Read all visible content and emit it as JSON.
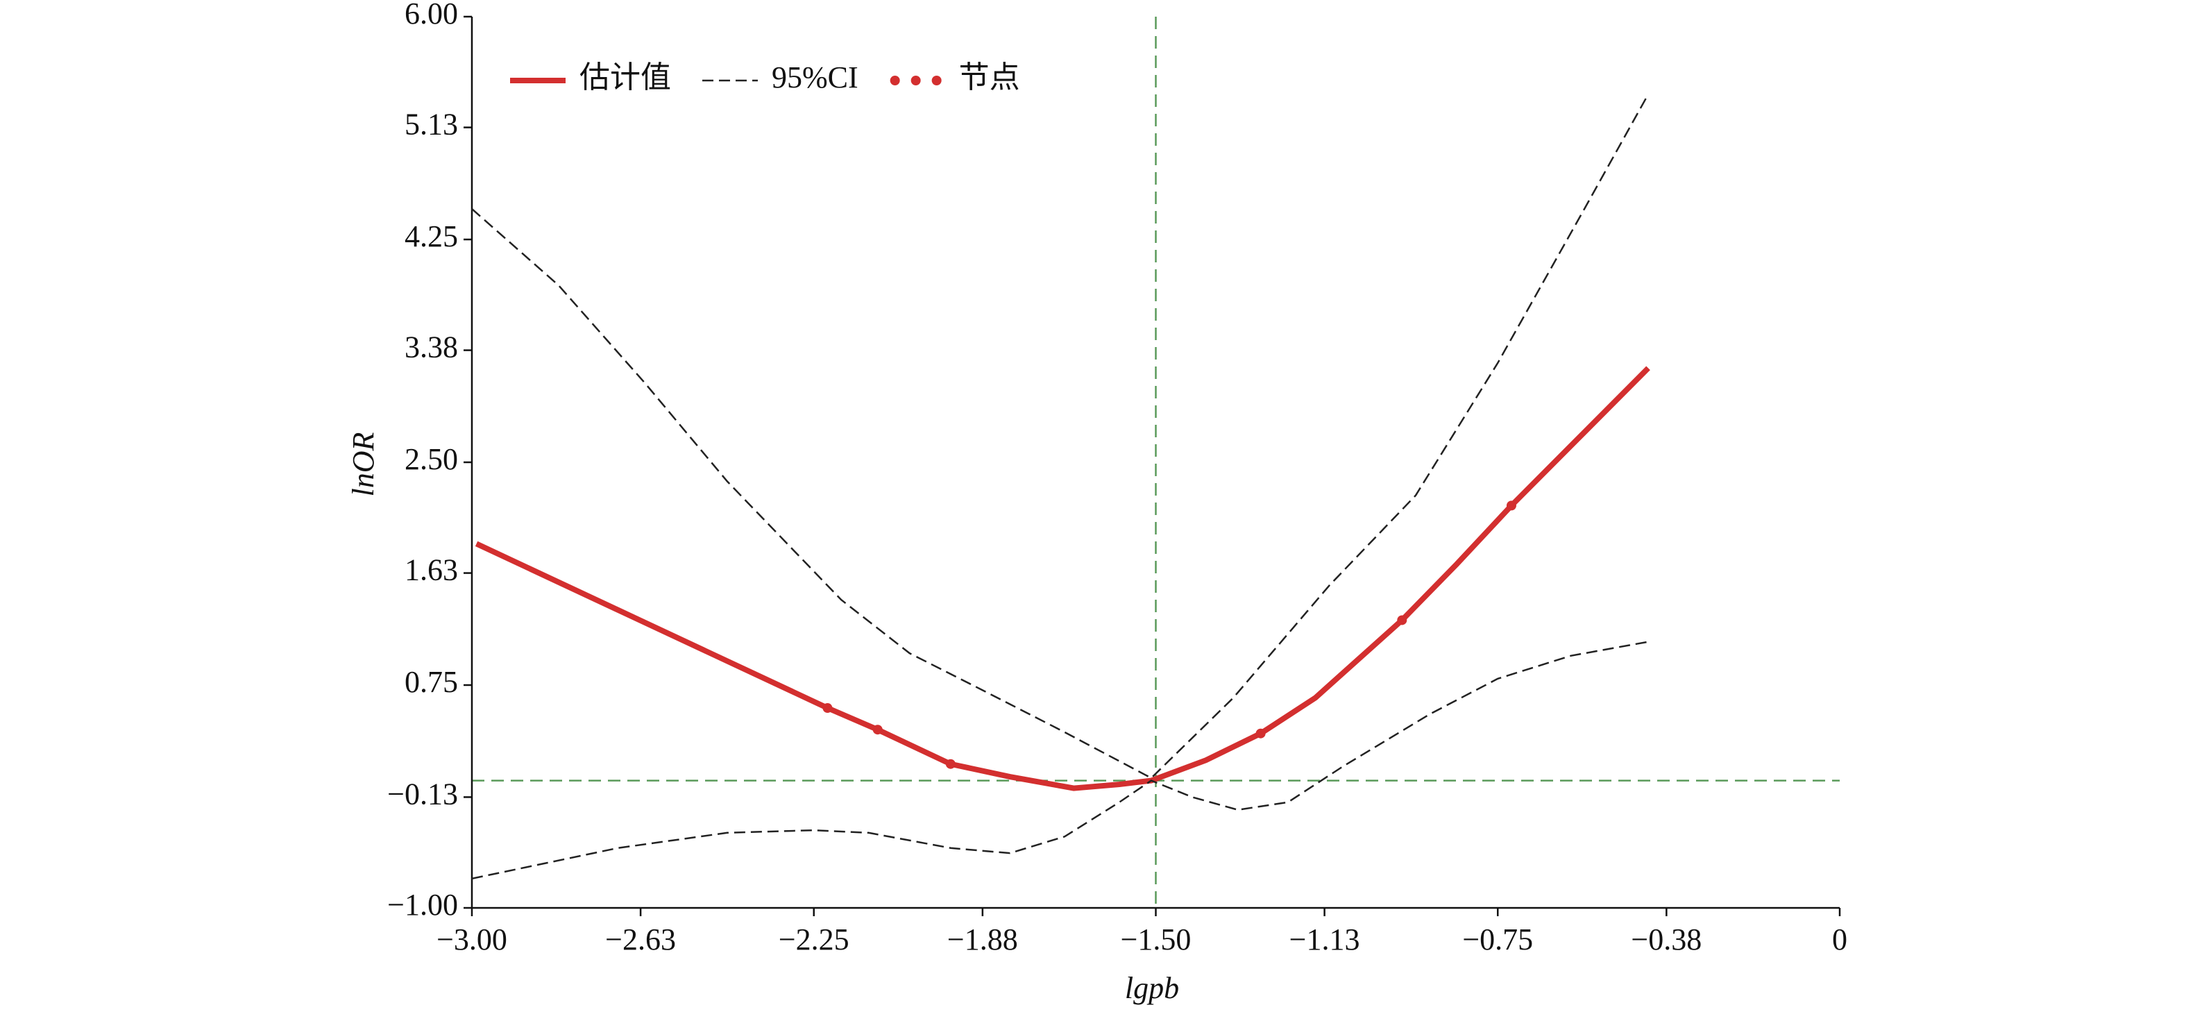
{
  "chart_data": {
    "type": "line",
    "x_label": "lgpb",
    "y_label": "lnOR",
    "xlim": [
      -3,
      0
    ],
    "ylim": [
      -1,
      6
    ],
    "xticks": [
      {
        "value": -3,
        "label": "−3.00"
      },
      {
        "value": -2.63,
        "label": "−2.63"
      },
      {
        "value": -2.25,
        "label": "−2.25"
      },
      {
        "value": -1.88,
        "label": "−1.88"
      },
      {
        "value": -1.5,
        "label": "−1.50"
      },
      {
        "value": -1.13,
        "label": "−1.13"
      },
      {
        "value": -0.75,
        "label": "−0.75"
      },
      {
        "value": -0.38,
        "label": "−0.38"
      },
      0
    ],
    "yticks": [
      {
        "value": -1,
        "label": "−1.00"
      },
      {
        "value": -0.13,
        "label": "−0.13"
      },
      {
        "value": 0.75,
        "label": "0.75"
      },
      {
        "value": 1.63,
        "label": "1.63"
      },
      {
        "value": 2.5,
        "label": "2.50"
      },
      {
        "value": 3.38,
        "label": "3.38"
      },
      {
        "value": 4.25,
        "label": "4.25"
      },
      {
        "value": 5.13,
        "label": "5.13"
      },
      {
        "value": 6,
        "label": "6.00"
      }
    ],
    "reference_lines": {
      "x": -1.5,
      "y": 0,
      "color": "#5a9a5a"
    },
    "series": [
      {
        "name": "估计值",
        "color": "#d32f2f",
        "style": "solid",
        "x": [
          -2.99,
          -2.22,
          -2.11,
          -1.95,
          -1.82,
          -1.68,
          -1.58,
          -1.51,
          -1.39,
          -1.27,
          -1.15,
          -0.96,
          -0.84,
          -0.72,
          -0.42
        ],
        "values": [
          1.86,
          0.57,
          0.4,
          0.13,
          0.03,
          -0.06,
          -0.03,
          0,
          0.16,
          0.37,
          0.65,
          1.26,
          1.7,
          2.16,
          3.24
        ]
      },
      {
        "name": "95%CI",
        "color": "#222222",
        "style": "dashed",
        "x": [
          -3,
          -2.81,
          -2.62,
          -2.44,
          -2.19,
          -2.04,
          -1.88,
          -1.7,
          -1.51,
          -1.33,
          -1.12,
          -0.93,
          -0.75,
          -0.56,
          -0.42
        ],
        "values": [
          4.49,
          3.89,
          3.12,
          2.35,
          1.42,
          1.0,
          0.71,
          0.38,
          0.02,
          0.65,
          1.53,
          2.24,
          3.28,
          4.49,
          5.39
        ]
      },
      {
        "color": "#222222",
        "style": "dashed",
        "x": [
          -3,
          -2.68,
          -2.44,
          -2.25,
          -2.13,
          -1.95,
          -1.82,
          -1.7,
          -1.58,
          -1.51,
          -1.42,
          -1.32,
          -1.21,
          -1.09,
          -0.9,
          -0.75,
          -0.59,
          -0.42
        ],
        "values": [
          -0.77,
          -0.53,
          -0.41,
          -0.39,
          -0.41,
          -0.53,
          -0.57,
          -0.44,
          -0.17,
          0,
          -0.13,
          -0.23,
          -0.17,
          0.11,
          0.52,
          0.8,
          0.98,
          1.09
        ]
      },
      {
        "name": "节点",
        "color": "#d32f2f",
        "style": "dots",
        "x": [
          -2.22,
          -2.11,
          -1.95,
          -1.27,
          -0.96,
          -0.72
        ],
        "values": [
          0.57,
          0.4,
          0.13,
          0.37,
          1.26,
          2.16
        ]
      }
    ]
  }
}
